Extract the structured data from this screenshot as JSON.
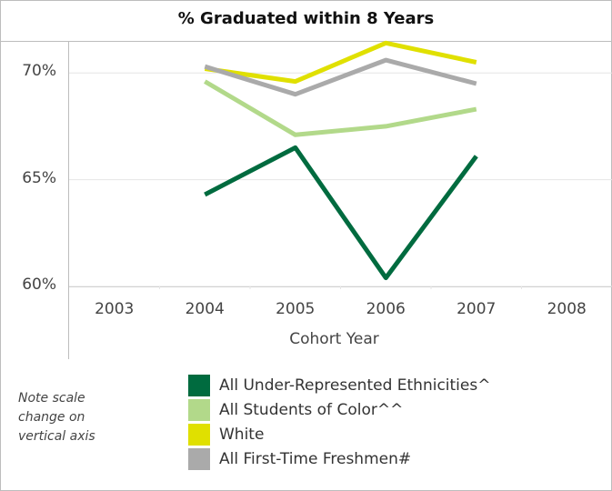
{
  "chart_data": {
    "type": "line",
    "title": "% Graduated within 8 Years",
    "xlabel": "Cohort Year",
    "ylabel": "",
    "x_ticks": [
      "2003",
      "2004",
      "2005",
      "2006",
      "2007",
      "2008"
    ],
    "xlim": [
      2003,
      2008
    ],
    "y_ticks": [
      "60%",
      "65%",
      "70%"
    ],
    "ylim": [
      60,
      71.5
    ],
    "x": [
      2004,
      2005,
      2006,
      2007
    ],
    "series": [
      {
        "name": "All Under-Represented Ethnicities^",
        "color": "#006b3f",
        "values": [
          64.3,
          66.5,
          60.4,
          66.1
        ]
      },
      {
        "name": "All Students of Color^^",
        "color": "#b2d98a",
        "values": [
          69.6,
          67.1,
          67.5,
          68.3
        ]
      },
      {
        "name": "White",
        "color": "#e0e000",
        "values": [
          70.2,
          69.6,
          71.4,
          70.5
        ]
      },
      {
        "name": "All First-Time Freshmen#",
        "color": "#aaaaaa",
        "values": [
          70.3,
          69.0,
          70.6,
          69.5
        ]
      }
    ],
    "grid": true,
    "legend_position": "bottom"
  },
  "note": "Note scale change on vertical axis"
}
